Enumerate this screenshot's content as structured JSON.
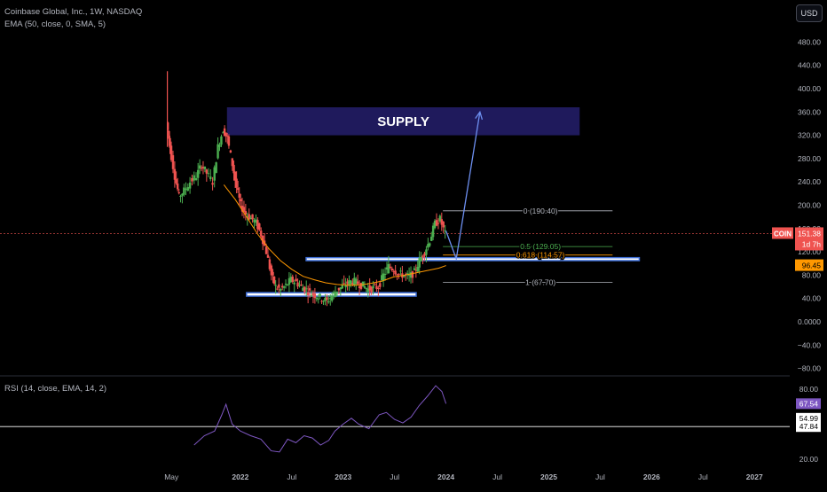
{
  "header": {
    "symbol_title": "Coinbase Global, Inc., 1W, NASDAQ",
    "ema_indicator": "EMA (50, close, 0, SMA, 5)",
    "currency_button": "USD"
  },
  "price_axis": {
    "ticks": [
      "480.00",
      "440.00",
      "400.00",
      "360.00",
      "320.00",
      "280.00",
      "240.00",
      "200.00",
      "160.00",
      "120.00",
      "80.00",
      "40.00",
      "0.0000",
      "−40.00",
      "−80.00"
    ],
    "tick_values": [
      480,
      440,
      400,
      360,
      320,
      280,
      240,
      200,
      160,
      120,
      80,
      40,
      0,
      -40,
      -80
    ],
    "last_price_symbol": "COIN",
    "last_price": "151.38",
    "last_price_value": 151.38,
    "countdown": "1d 7h",
    "ema_value": "96.45",
    "ema_value_num": 96.45
  },
  "time_axis": {
    "labels": [
      "May",
      "2022",
      "Jul",
      "2023",
      "Jul",
      "2024",
      "Jul",
      "2025",
      "Jul",
      "2026",
      "Jul",
      "2027"
    ],
    "label_years": [
      2021.33,
      2022.0,
      2022.5,
      2023.0,
      2023.5,
      2024.0,
      2024.5,
      2025.0,
      2025.5,
      2026.0,
      2026.5,
      2027.0
    ]
  },
  "annotations": {
    "supply_label": "SUPPLY",
    "supply_zone": {
      "from": 2021.87,
      "to": 2025.3,
      "low": 320,
      "high": 368
    },
    "fib_levels": [
      {
        "label": "0 (190.40)",
        "value": 190.4,
        "color": "#b2b5be"
      },
      {
        "label": "0.5 (129.05)",
        "value": 129.05,
        "color": "#4caf50"
      },
      {
        "label": "0.618 (114.57)",
        "value": 114.57,
        "color": "#ff9800"
      },
      {
        "label": "1 (67.70)",
        "value": 67.7,
        "color": "#b2b5be"
      }
    ],
    "fib_range": {
      "from": 2023.97,
      "to": 2025.62
    },
    "support_zones": [
      {
        "from": 2022.64,
        "to": 2025.88,
        "low": 105,
        "high": 110
      },
      {
        "from": 2022.06,
        "to": 2023.71,
        "low": 44,
        "high": 50
      }
    ],
    "projection_arrow": [
      [
        2024.0,
        156
      ],
      [
        2024.1,
        108
      ],
      [
        2024.33,
        360
      ]
    ]
  },
  "rsi": {
    "indicator_label": "RSI (14, close, EMA, 14, 2)",
    "axis_ticks": [
      "80.00",
      "20.00"
    ],
    "axis_tick_values": [
      80,
      20
    ],
    "value": "67.54",
    "value_num": 67.54,
    "upper_band": "54.99",
    "upper_band_num": 54.99,
    "lower_band": "47.84",
    "lower_band_num": 47.84
  },
  "chart_data": {
    "type": "candlestick",
    "title": "Coinbase Global, Inc., 1W, NASDAQ",
    "symbol": "COIN",
    "ylim": [
      -80,
      480
    ],
    "xlim": [
      2021.0,
      2027.3
    ],
    "price_path": [
      [
        2021.29,
        342
      ],
      [
        2021.32,
        300
      ],
      [
        2021.37,
        250
      ],
      [
        2021.41,
        215
      ],
      [
        2021.46,
        225
      ],
      [
        2021.52,
        240
      ],
      [
        2021.58,
        250
      ],
      [
        2021.63,
        270
      ],
      [
        2021.68,
        255
      ],
      [
        2021.74,
        240
      ],
      [
        2021.79,
        300
      ],
      [
        2021.84,
        330
      ],
      [
        2021.88,
        315
      ],
      [
        2021.93,
        270
      ],
      [
        2021.97,
        230
      ],
      [
        2022.01,
        200
      ],
      [
        2022.06,
        185
      ],
      [
        2022.11,
        178
      ],
      [
        2022.16,
        170
      ],
      [
        2022.21,
        150
      ],
      [
        2022.26,
        120
      ],
      [
        2022.31,
        80
      ],
      [
        2022.35,
        60
      ],
      [
        2022.4,
        55
      ],
      [
        2022.45,
        62
      ],
      [
        2022.5,
        72
      ],
      [
        2022.55,
        68
      ],
      [
        2022.6,
        60
      ],
      [
        2022.65,
        55
      ],
      [
        2022.7,
        48
      ],
      [
        2022.75,
        45
      ],
      [
        2022.8,
        40
      ],
      [
        2022.85,
        35
      ],
      [
        2022.9,
        45
      ],
      [
        2022.95,
        55
      ],
      [
        2023.0,
        60
      ],
      [
        2023.05,
        66
      ],
      [
        2023.1,
        70
      ],
      [
        2023.15,
        66
      ],
      [
        2023.2,
        62
      ],
      [
        2023.25,
        56
      ],
      [
        2023.3,
        58
      ],
      [
        2023.35,
        60
      ],
      [
        2023.4,
        80
      ],
      [
        2023.45,
        95
      ],
      [
        2023.5,
        90
      ],
      [
        2023.55,
        82
      ],
      [
        2023.6,
        80
      ],
      [
        2023.65,
        77
      ],
      [
        2023.7,
        85
      ],
      [
        2023.75,
        105
      ],
      [
        2023.8,
        120
      ],
      [
        2023.85,
        140
      ],
      [
        2023.9,
        168
      ],
      [
        2023.95,
        176
      ],
      [
        2024.0,
        151
      ]
    ],
    "ema_line": [
      [
        2021.84,
        235
      ],
      [
        2021.95,
        210
      ],
      [
        2022.06,
        180
      ],
      [
        2022.17,
        150
      ],
      [
        2022.28,
        125
      ],
      [
        2022.39,
        105
      ],
      [
        2022.5,
        90
      ],
      [
        2022.61,
        78
      ],
      [
        2022.72,
        72
      ],
      [
        2022.83,
        67
      ],
      [
        2022.94,
        64
      ],
      [
        2023.05,
        63
      ],
      [
        2023.16,
        63
      ],
      [
        2023.27,
        66
      ],
      [
        2023.38,
        70
      ],
      [
        2023.49,
        77
      ],
      [
        2023.6,
        80
      ],
      [
        2023.71,
        84
      ],
      [
        2023.82,
        88
      ],
      [
        2023.93,
        92
      ],
      [
        2024.0,
        96.45
      ]
    ],
    "rsi_line": [
      [
        2021.55,
        32
      ],
      [
        2021.65,
        40
      ],
      [
        2021.75,
        44
      ],
      [
        2021.82,
        58
      ],
      [
        2021.86,
        67
      ],
      [
        2021.92,
        50
      ],
      [
        2022.0,
        44
      ],
      [
        2022.1,
        40
      ],
      [
        2022.2,
        37
      ],
      [
        2022.3,
        27
      ],
      [
        2022.38,
        26
      ],
      [
        2022.46,
        37
      ],
      [
        2022.54,
        34
      ],
      [
        2022.62,
        40
      ],
      [
        2022.7,
        38
      ],
      [
        2022.78,
        32
      ],
      [
        2022.86,
        36
      ],
      [
        2022.92,
        44
      ],
      [
        2023.0,
        50
      ],
      [
        2023.08,
        55
      ],
      [
        2023.15,
        50
      ],
      [
        2023.25,
        46
      ],
      [
        2023.35,
        58
      ],
      [
        2023.42,
        60
      ],
      [
        2023.5,
        54
      ],
      [
        2023.58,
        51
      ],
      [
        2023.66,
        56
      ],
      [
        2023.74,
        66
      ],
      [
        2023.82,
        74
      ],
      [
        2023.9,
        83
      ],
      [
        2023.96,
        78
      ],
      [
        2024.0,
        67.54
      ]
    ],
    "rsi_ylim": [
      0,
      100
    ]
  },
  "colors": {
    "background": "#000000",
    "up": "#26a69a",
    "up_bright": "#4caf50",
    "down": "#ef5350",
    "ema_line": "#ff9800",
    "rsi_line": "#7e57c2",
    "supply_zone": "#1f1a5c",
    "support_zone": "#3f6fd8",
    "arrow": "#6d8ff0",
    "grid_text": "#b2b5be",
    "price_dashed": "#ef5350"
  }
}
